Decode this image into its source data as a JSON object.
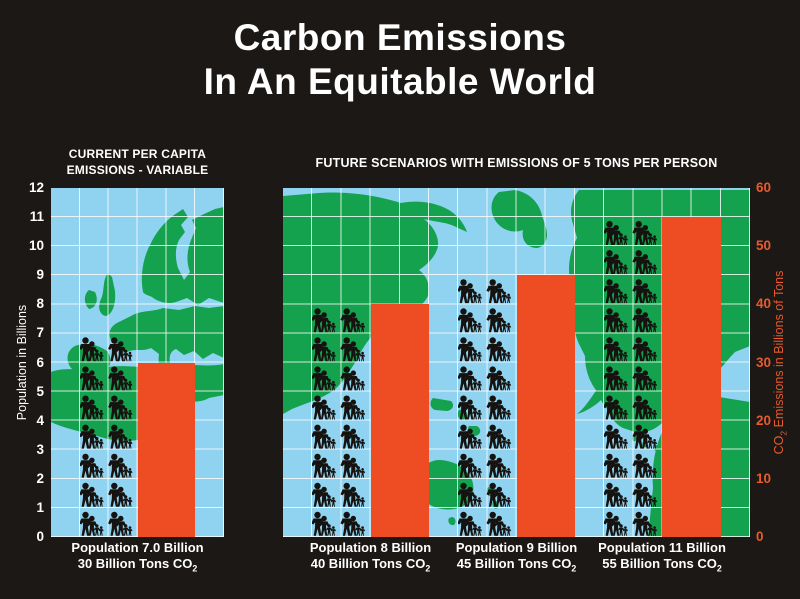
{
  "title": {
    "line1": "Carbon Emissions",
    "line2": "In An Equitable World"
  },
  "colors": {
    "background": "#1b1816",
    "panel_blue": "#8fd3f1",
    "map_green": "#14a24e",
    "bar_orange": "#ee4d24",
    "axis_orange": "#e75b2d",
    "grid_line": "#ffffff",
    "text_white": "#ffffff",
    "people_silhouette": "#15120f"
  },
  "chart_data": {
    "type": "bar",
    "title": "Carbon Emissions In An Equitable World",
    "left_axis": {
      "label": "Population in Billions",
      "min": 0,
      "max": 12,
      "step": 1,
      "ticks": [
        0,
        1,
        2,
        3,
        4,
        5,
        6,
        7,
        8,
        9,
        10,
        11,
        12
      ]
    },
    "right_axis": {
      "label": "CO2 Emissions in Billions of Tons",
      "label_prefix": "CO",
      "label_sub": "2",
      "label_suffix": " Emissions in Billions of Tons",
      "min": 0,
      "max": 60,
      "step": 10,
      "ticks": [
        0,
        10,
        20,
        30,
        40,
        50,
        60
      ]
    },
    "pictogram_note": "one row of family silhouettes = 1 billion people",
    "panels": [
      {
        "id": "current",
        "heading_line1": "CURRENT PER CAPITA",
        "heading_line2": "EMISSIONS - VARIABLE",
        "groups": [
          {
            "population_billions": 7.0,
            "co2_billion_tons": 30,
            "caption_population": "Population 7.0 Billion",
            "caption_co2_prefix": "30 Billion Tons CO",
            "caption_co2_sub": "2"
          }
        ]
      },
      {
        "id": "future",
        "heading": "FUTURE SCENARIOS WITH EMISSIONS OF 5 TONS PER PERSON",
        "groups": [
          {
            "population_billions": 8,
            "co2_billion_tons": 40,
            "caption_population": "Population 8 Billion",
            "caption_co2_prefix": "40 Billion Tons CO",
            "caption_co2_sub": "2"
          },
          {
            "population_billions": 9,
            "co2_billion_tons": 45,
            "caption_population": "Population 9 Billion",
            "caption_co2_prefix": "45 Billion Tons CO",
            "caption_co2_sub": "2"
          },
          {
            "population_billions": 11,
            "co2_billion_tons": 55,
            "caption_population": "Population 11 Billion",
            "caption_co2_prefix": "55 Billion Tons CO",
            "caption_co2_sub": "2"
          }
        ]
      }
    ]
  }
}
